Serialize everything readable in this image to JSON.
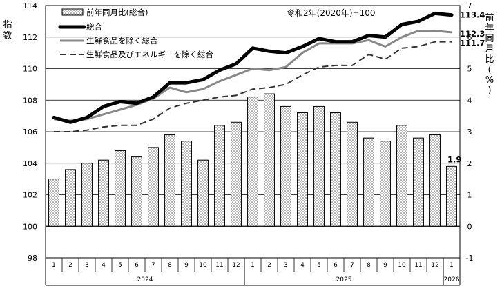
{
  "chart_data": {
    "type": "bar+line",
    "left_axis_label": "指数",
    "right_axis_label": "前年同月比(%)",
    "base_note": "令和2年(2020年)=100",
    "left_ylim": [
      98,
      114
    ],
    "left_ticks": [
      98,
      100,
      102,
      104,
      106,
      108,
      110,
      112,
      114
    ],
    "right_ylim": [
      -1,
      7
    ],
    "right_ticks": [
      -1,
      0,
      1,
      2,
      3,
      4,
      5,
      6,
      7
    ],
    "months": [
      "1",
      "2",
      "3",
      "4",
      "5",
      "6",
      "7",
      "8",
      "9",
      "10",
      "11",
      "12",
      "1",
      "2",
      "3",
      "4",
      "5",
      "6",
      "7",
      "8",
      "9",
      "10",
      "11",
      "12",
      "1"
    ],
    "years": [
      {
        "label": "2024",
        "start": 0,
        "end": 11
      },
      {
        "label": "2025",
        "start": 12,
        "end": 23
      },
      {
        "label": "2026",
        "start": 24,
        "end": 24
      }
    ],
    "bar_series": {
      "name": "前年同月比(総合)",
      "axis": "right",
      "values": [
        1.5,
        1.8,
        2.0,
        2.1,
        2.4,
        2.2,
        2.5,
        2.9,
        2.7,
        2.1,
        3.2,
        3.3,
        4.1,
        4.2,
        3.8,
        3.6,
        3.8,
        3.6,
        3.3,
        2.8,
        2.7,
        3.2,
        2.8,
        2.9,
        1.9
      ],
      "last_label": "1.9"
    },
    "line_series": [
      {
        "name": "総合",
        "axis": "left",
        "style": "thick",
        "color": "#000000",
        "values": [
          106.9,
          106.6,
          106.9,
          107.6,
          107.9,
          107.8,
          108.2,
          109.1,
          109.1,
          109.3,
          109.9,
          110.3,
          111.3,
          111.1,
          111.0,
          111.4,
          111.9,
          111.7,
          111.7,
          112.1,
          112.0,
          112.8,
          113.0,
          113.5,
          113.4
        ],
        "last_label": "113.4"
      },
      {
        "name": "生鮮食品を除く総合",
        "axis": "left",
        "style": "gray",
        "color": "#888888",
        "values": [
          106.8,
          106.7,
          106.8,
          107.1,
          107.4,
          107.7,
          108.1,
          108.8,
          108.5,
          108.7,
          109.2,
          109.6,
          110.0,
          109.9,
          110.1,
          111.0,
          111.6,
          111.6,
          111.6,
          111.8,
          111.4,
          112.0,
          112.4,
          112.4,
          112.3
        ],
        "last_label": "112.3"
      },
      {
        "name": "生鮮食品及びエネルギーを除く総合",
        "axis": "left",
        "style": "dashed",
        "color": "#333333",
        "values": [
          106.0,
          106.0,
          106.1,
          106.3,
          106.4,
          106.4,
          106.8,
          107.5,
          107.8,
          108.0,
          108.2,
          108.3,
          108.7,
          108.8,
          109.0,
          109.6,
          110.1,
          110.2,
          110.2,
          110.9,
          110.6,
          111.3,
          111.4,
          111.7,
          111.7
        ],
        "last_label": "111.7"
      }
    ],
    "grid": true,
    "legend_position": "top-left"
  }
}
